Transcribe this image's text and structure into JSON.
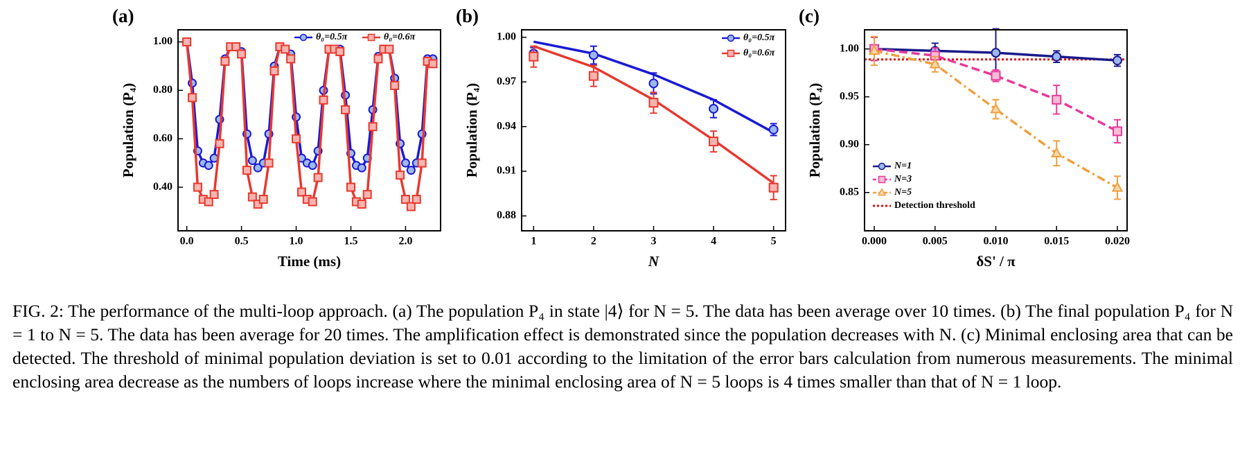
{
  "chart_data": [
    {
      "type": "line",
      "panel": "(a)",
      "xlabel": "Time (ms)",
      "ylabel": "Population (P₄)",
      "xlim": [
        -0.08,
        2.32
      ],
      "ylim": [
        0.22,
        1.05
      ],
      "xticks": [
        {
          "value": 0,
          "label": "0.0"
        },
        0.5,
        {
          "value": 1,
          "label": "1.0"
        },
        1.5,
        {
          "value": 2,
          "label": "2.0"
        }
      ],
      "yticks": [
        {
          "value": 0.4,
          "label": "0.40"
        },
        {
          "value": 0.6,
          "label": "0.60"
        },
        {
          "value": 0.8,
          "label": "0.80"
        },
        {
          "value": 1,
          "label": "1.00"
        }
      ],
      "legend": "top",
      "x": [
        0,
        0.05,
        0.1,
        0.15,
        0.2,
        0.25,
        0.3,
        0.35,
        0.4,
        0.45,
        0.5,
        0.55,
        0.6,
        0.65,
        0.7,
        0.75,
        0.8,
        0.85,
        0.9,
        0.95,
        1,
        1.05,
        1.1,
        1.15,
        1.2,
        1.25,
        1.3,
        1.35,
        1.4,
        1.45,
        1.5,
        1.55,
        1.6,
        1.65,
        1.7,
        1.75,
        1.8,
        1.85,
        1.9,
        1.95,
        2,
        2.05,
        2.1,
        2.15,
        2.2,
        2.25
      ],
      "series": [
        {
          "name": "θ₀=0.5π",
          "color": "#1a1ad6",
          "fill": "#9cb8ee",
          "marker": "circle",
          "dash": "solid",
          "values": [
            1.0,
            0.83,
            0.55,
            0.5,
            0.49,
            0.52,
            0.68,
            0.93,
            0.98,
            0.98,
            0.96,
            0.62,
            0.51,
            0.48,
            0.5,
            0.62,
            0.9,
            0.98,
            0.97,
            0.95,
            0.69,
            0.52,
            0.5,
            0.49,
            0.55,
            0.8,
            0.97,
            0.97,
            0.97,
            0.78,
            0.54,
            0.49,
            0.48,
            0.52,
            0.72,
            0.94,
            0.97,
            0.97,
            0.85,
            0.58,
            0.5,
            0.47,
            0.5,
            0.62,
            0.93,
            0.93
          ]
        },
        {
          "name": "θ₀=0.6π",
          "color": "#e8392e",
          "fill": "#f8b4b0",
          "marker": "square",
          "dash": "solid",
          "values": [
            1.0,
            0.77,
            0.4,
            0.35,
            0.34,
            0.37,
            0.58,
            0.92,
            0.98,
            0.98,
            0.95,
            0.47,
            0.36,
            0.33,
            0.35,
            0.5,
            0.88,
            0.98,
            0.97,
            0.93,
            0.6,
            0.38,
            0.35,
            0.34,
            0.44,
            0.76,
            0.97,
            0.97,
            0.96,
            0.72,
            0.4,
            0.34,
            0.33,
            0.37,
            0.65,
            0.93,
            0.97,
            0.97,
            0.82,
            0.45,
            0.35,
            0.32,
            0.35,
            0.5,
            0.92,
            0.91
          ]
        }
      ]
    },
    {
      "type": "line",
      "panel": "(b)",
      "xlabel": "N",
      "ylabel": "Population (P₄)",
      "xlim": [
        0.8,
        5.2
      ],
      "ylim": [
        0.87,
        1.005
      ],
      "xticks": [
        1,
        2,
        3,
        4,
        5
      ],
      "yticks": [
        0.88,
        0.91,
        0.94,
        0.97,
        {
          "value": 1,
          "label": "1.00"
        }
      ],
      "legend": "upper right",
      "x": [
        1,
        2,
        3,
        4,
        5
      ],
      "series": [
        {
          "name": "θ₀=0.5π",
          "color": "#1a1ad6",
          "fill": "#9cb8ee",
          "marker": "circle",
          "dash": "solid",
          "values": [
            0.989,
            0.988,
            0.969,
            0.952,
            0.938
          ],
          "errors": [
            0.004,
            0.006,
            0.007,
            0.006,
            0.004
          ],
          "fit": [
            0.997,
            0.989,
            0.975,
            0.958,
            0.936
          ]
        },
        {
          "name": "θ₀=0.6π",
          "color": "#e8392e",
          "fill": "#f8b4b0",
          "marker": "square",
          "dash": "solid",
          "values": [
            0.987,
            0.974,
            0.956,
            0.93,
            0.899
          ],
          "errors": [
            0.007,
            0.007,
            0.007,
            0.007,
            0.008
          ],
          "fit": [
            0.994,
            0.98,
            0.958,
            0.931,
            0.902
          ]
        }
      ]
    },
    {
      "type": "line",
      "panel": "(c)",
      "xlabel": "δS' / π",
      "ylabel": "Population (P₄)",
      "xlim": [
        -0.0008,
        0.0208
      ],
      "ylim": [
        0.81,
        1.02
      ],
      "xticks": [
        {
          "value": 0,
          "label": "0.000"
        },
        0.005,
        {
          "value": 0.01,
          "label": "0.010"
        },
        0.015,
        {
          "value": 0.02,
          "label": "0.020"
        }
      ],
      "yticks": [
        0.85,
        {
          "value": 0.9,
          "label": "0.90"
        },
        0.95,
        {
          "value": 1,
          "label": "1.00"
        }
      ],
      "legend": "lower left",
      "x": [
        0,
        0.005,
        0.01,
        0.015,
        0.02
      ],
      "series": [
        {
          "name": "N=1",
          "color": "#1a1a8c",
          "fill": "#9cb8ee",
          "marker": "circle",
          "dash": "solid",
          "values": [
            1.0,
            0.998,
            0.996,
            0.992,
            0.988
          ],
          "errors": [
            0.012,
            0.008,
            0.025,
            0.006,
            0.006
          ]
        },
        {
          "name": "N=3",
          "color": "#e8399a",
          "fill": "#f6bcd8",
          "marker": "square",
          "dash": "dash",
          "values": [
            1.0,
            0.993,
            0.972,
            0.947,
            0.914
          ],
          "errors": [
            0.012,
            0.008,
            0.006,
            0.015,
            0.012
          ]
        },
        {
          "name": "N=5",
          "color": "#f0a040",
          "fill": "#f8d8a8",
          "marker": "triangle",
          "dash": "dashdot",
          "values": [
            0.998,
            0.984,
            0.937,
            0.891,
            0.855
          ],
          "errors": [
            0.015,
            0.008,
            0.01,
            0.013,
            0.012
          ]
        }
      ],
      "threshold": {
        "name": "Detection threshold",
        "value": 0.989,
        "color": "#e01010"
      }
    }
  ],
  "caption": "FIG. 2: The performance of the multi-loop approach. (a) The population P₄ in state |4⟩ for N = 5. The data has been average over 10 times. (b) The final population P₄ for N = 1 to N = 5. The data has been average for 20 times. The amplification effect is demonstrated since the population decreases with N. (c) Minimal enclosing area that can be detected. The threshold of minimal population deviation is set to 0.01 according to the limitation of the error bars calculation from numerous measurements. The minimal enclosing area decrease as the numbers of loops increase where the minimal enclosing area of N = 5 loops is 4 times smaller than that of N = 1 loop."
}
